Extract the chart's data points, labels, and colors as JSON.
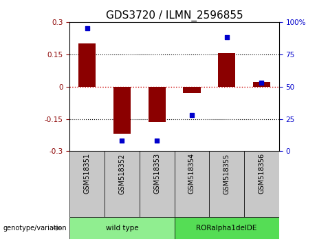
{
  "title": "GDS3720 / ILMN_2596855",
  "samples": [
    "GSM518351",
    "GSM518352",
    "GSM518353",
    "GSM518354",
    "GSM518355",
    "GSM518356"
  ],
  "transformed_count": [
    0.2,
    -0.22,
    -0.165,
    -0.03,
    0.155,
    0.02
  ],
  "percentile_rank": [
    95,
    8,
    8,
    28,
    88,
    53
  ],
  "groups": [
    {
      "label": "wild type",
      "start": 0,
      "end": 3,
      "color": "#90EE90"
    },
    {
      "label": "RORalpha1delDE",
      "start": 3,
      "end": 6,
      "color": "#55DD55"
    }
  ],
  "ylim_left": [
    -0.3,
    0.3
  ],
  "ylim_right": [
    0,
    100
  ],
  "yticks_left": [
    -0.3,
    -0.15,
    0,
    0.15,
    0.3
  ],
  "yticks_right": [
    0,
    25,
    50,
    75,
    100
  ],
  "bar_color": "#8B0000",
  "dot_color": "#0000CC",
  "zero_line_color": "#CC0000",
  "grid_color": "#000000",
  "title_fontsize": 11,
  "tick_fontsize": 7.5,
  "label_fontsize": 8,
  "legend_fontsize": 7.5,
  "genotype_label": "genotype/variation",
  "sample_box_color": "#C8C8C8"
}
